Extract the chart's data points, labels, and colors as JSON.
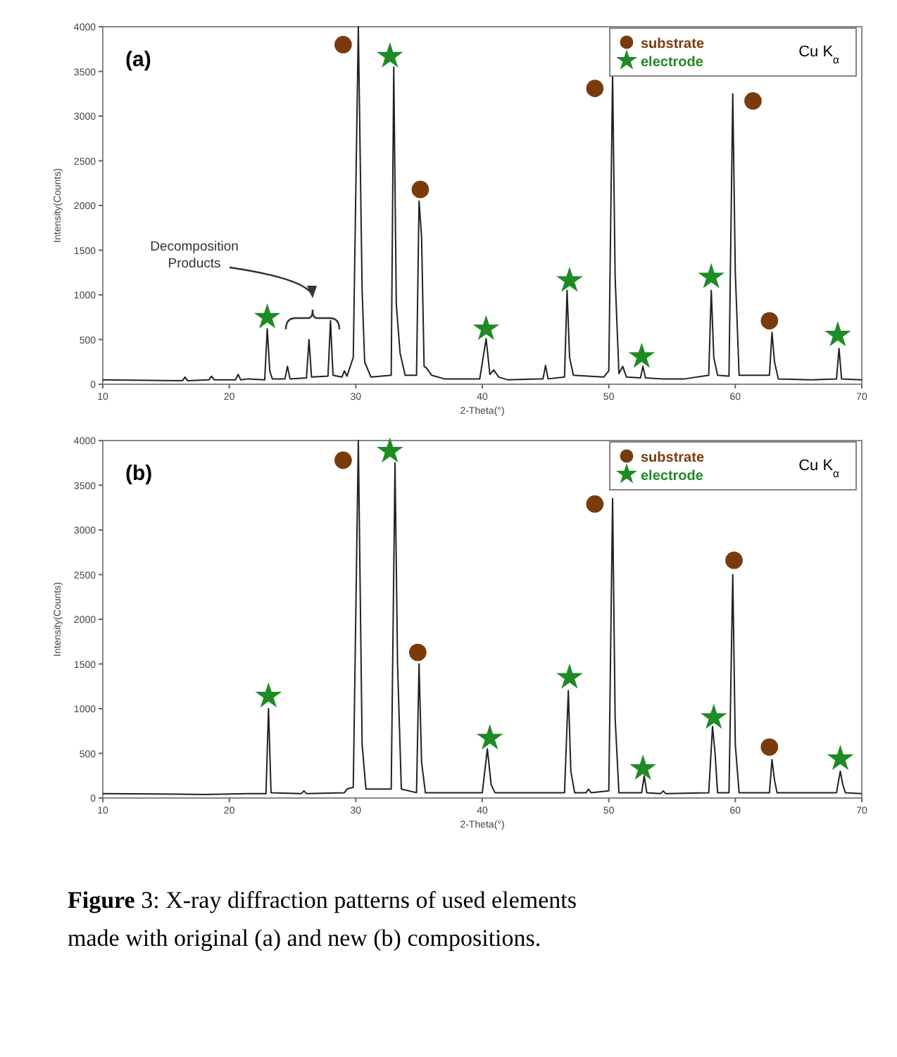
{
  "chart_data": [
    {
      "type": "line",
      "xlabel": "2-Theta(°)",
      "ylabel": "Intensity(Counts)",
      "xlim": [
        10,
        70
      ],
      "ylim": [
        0,
        4000
      ],
      "xticks": [
        10,
        20,
        30,
        40,
        50,
        60,
        70
      ],
      "yticks": [
        0,
        500,
        1000,
        1500,
        2000,
        2500,
        3000,
        3500,
        4000
      ],
      "grid": false,
      "legend": "top right",
      "line_style": "solid",
      "annotations": [
        "(a)",
        "Cu K$_{α}$",
        "Decomposition\nProducts"
      ],
      "series": [
        {
          "color": "#222222",
          "x": [
            10,
            16.3,
            16.5,
            16.7,
            18.4,
            18.6,
            18.8,
            20.5,
            20.7,
            20.9,
            21.5,
            22.8,
            23.0,
            23.2,
            23.4,
            24.4,
            24.6,
            24.8,
            26.1,
            26.3,
            26.5,
            27.8,
            28.0,
            28.2,
            28.9,
            29.1,
            29.3,
            29.8,
            30.2,
            30.5,
            30.7,
            31.2,
            32.8,
            33.0,
            33.2,
            33.5,
            33.9,
            34.8,
            35.0,
            35.2,
            35.4,
            35.6,
            36.0,
            37,
            39.8,
            40.3,
            40.6,
            40.9,
            41.3,
            42,
            44.8,
            45.0,
            45.2,
            46.5,
            46.7,
            46.9,
            47.2,
            49.6,
            50.0,
            50.3,
            50.5,
            50.8,
            51.1,
            51.4,
            52.5,
            52.7,
            52.9,
            54.3,
            56,
            57.9,
            58.1,
            58.3,
            58.6,
            59.5,
            59.8,
            60.0,
            60.3,
            62.7,
            62.9,
            63.1,
            63.4,
            66,
            68.0,
            68.2,
            68.4,
            70
          ],
          "values": [
            50,
            40,
            80,
            40,
            50,
            90,
            50,
            50,
            110,
            50,
            60,
            50,
            620,
            150,
            60,
            60,
            200,
            60,
            70,
            500,
            80,
            90,
            710,
            100,
            80,
            150,
            90,
            300,
            4000,
            1050,
            250,
            80,
            100,
            3550,
            900,
            350,
            100,
            100,
            2050,
            1650,
            200,
            180,
            100,
            60,
            60,
            510,
            110,
            160,
            80,
            50,
            60,
            210,
            60,
            80,
            1050,
            300,
            100,
            80,
            150,
            3470,
            1200,
            120,
            200,
            80,
            70,
            200,
            70,
            60,
            60,
            100,
            1050,
            300,
            100,
            90,
            3250,
            1250,
            100,
            100,
            580,
            250,
            60,
            50,
            60,
            400,
            60,
            50
          ]
        },
        {
          "type": "scatter",
          "name": "substrate",
          "color": "#7a3b0c",
          "marker": "circle",
          "x": [
            29.0,
            35.1,
            48.9,
            61.4,
            62.7
          ],
          "values": [
            3800,
            2180,
            3310,
            3170,
            710
          ]
        },
        {
          "type": "scatter",
          "name": "electrode",
          "color": "#1f8b24",
          "marker": "star",
          "x": [
            23.0,
            32.7,
            40.3,
            46.9,
            52.6,
            58.1,
            68.1
          ],
          "values": [
            750,
            3670,
            620,
            1160,
            310,
            1200,
            550
          ]
        }
      ]
    },
    {
      "type": "line",
      "xlabel": "2-Theta(°)",
      "ylabel": "Intensity(Counts)",
      "xlim": [
        10,
        70
      ],
      "ylim": [
        0,
        4000
      ],
      "xticks": [
        10,
        20,
        30,
        40,
        50,
        60,
        70
      ],
      "yticks": [
        0,
        500,
        1000,
        1500,
        2000,
        2500,
        3000,
        3500,
        4000
      ],
      "grid": false,
      "legend": "top right",
      "line_style": "solid",
      "annotations": [
        "(b)",
        "Cu K$_{α}$",
        "Figure 3:  X-ray diffraction patterns of used elements made with original (a) and new (b) compositions."
      ],
      "series": [
        {
          "color": "#222222",
          "x": [
            10,
            18,
            21.5,
            22.9,
            23.1,
            23.3,
            25.7,
            25.9,
            26.1,
            29.1,
            29.3,
            29.8,
            30.2,
            30.5,
            30.8,
            32.8,
            33.1,
            33.3,
            33.6,
            34.8,
            35.0,
            35.2,
            35.5,
            40.0,
            40.4,
            40.7,
            41.0,
            46.5,
            46.8,
            47.0,
            47.3,
            48.2,
            48.4,
            48.6,
            50.0,
            50.3,
            50.5,
            50.8,
            52.6,
            52.8,
            53.0,
            54.1,
            54.3,
            54.5,
            57.9,
            58.2,
            58.4,
            58.6,
            59.5,
            59.8,
            60.0,
            60.3,
            62.7,
            62.9,
            63.1,
            63.3,
            68.0,
            68.3,
            68.5,
            68.7,
            70
          ],
          "values": [
            50,
            40,
            50,
            50,
            1000,
            60,
            50,
            80,
            50,
            60,
            100,
            120,
            4000,
            600,
            100,
            100,
            3750,
            1500,
            100,
            60,
            1500,
            400,
            60,
            60,
            550,
            150,
            60,
            60,
            1200,
            300,
            60,
            60,
            100,
            60,
            80,
            3350,
            900,
            60,
            60,
            250,
            60,
            50,
            80,
            50,
            60,
            800,
            500,
            60,
            60,
            2500,
            600,
            60,
            60,
            430,
            200,
            60,
            60,
            300,
            150,
            60,
            50
          ]
        },
        {
          "type": "scatter",
          "name": "substrate",
          "color": "#7a3b0c",
          "marker": "circle",
          "x": [
            29.0,
            34.9,
            48.9,
            59.9,
            62.7
          ],
          "values": [
            3780,
            1630,
            3290,
            2660,
            570
          ]
        },
        {
          "type": "scatter",
          "name": "electrode",
          "color": "#1f8b24",
          "marker": "star",
          "x": [
            23.1,
            32.7,
            40.6,
            46.9,
            52.7,
            58.3,
            68.3
          ],
          "values": [
            1140,
            3880,
            670,
            1350,
            330,
            900,
            440
          ]
        }
      ]
    }
  ]
}
